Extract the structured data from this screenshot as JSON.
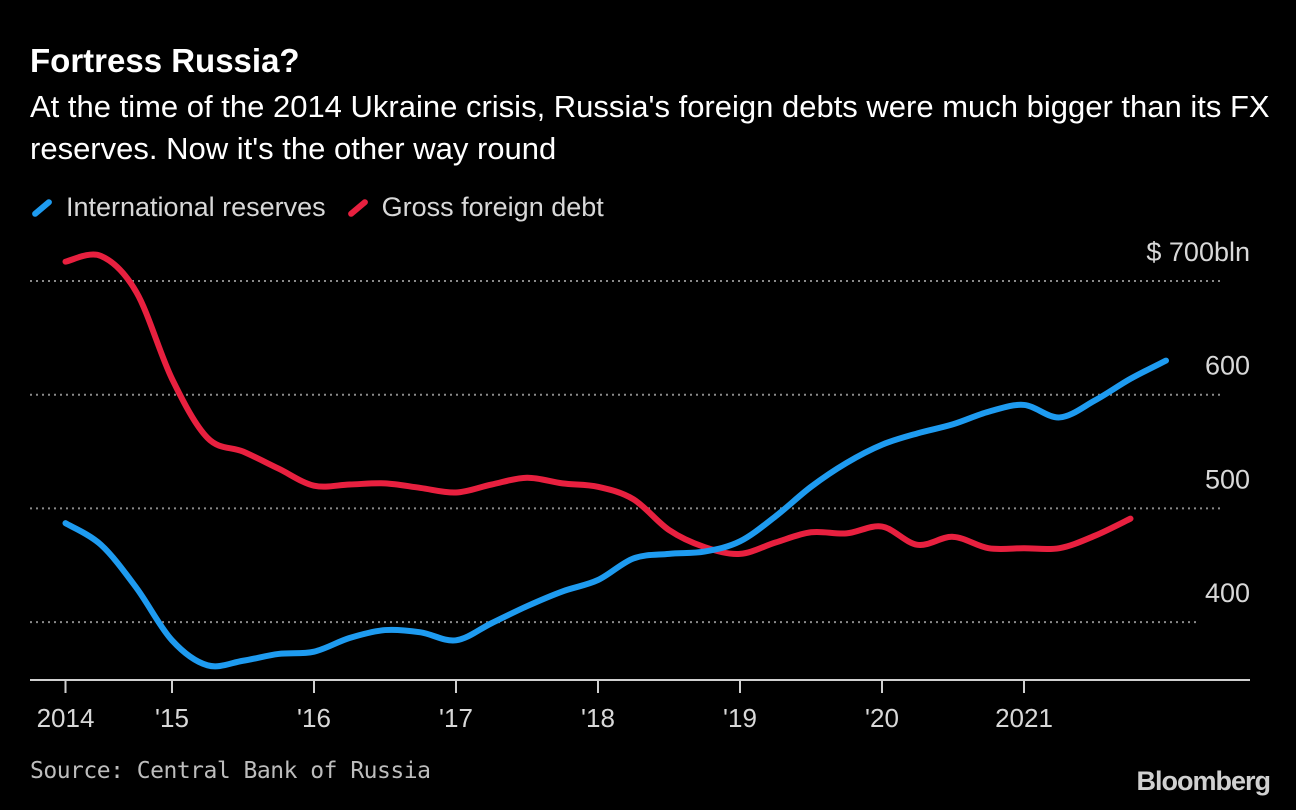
{
  "header": {
    "title": "Fortress Russia?",
    "subtitle": "At the time of the 2014 Ukraine crisis, Russia's foreign debts were much bigger than its FX reserves. Now it's the other way round"
  },
  "footer": {
    "source": "Source: Central Bank of Russia",
    "logo": "Bloomberg"
  },
  "chart_data": {
    "type": "line",
    "title": "Fortress Russia?",
    "xlabel": "",
    "ylabel": "",
    "ylim": [
      350,
      735
    ],
    "grid": true,
    "legend_placement": "top-left",
    "y_ticks": [
      {
        "value": 700,
        "label": "$ 700bln"
      },
      {
        "value": 600,
        "label": "600"
      },
      {
        "value": 500,
        "label": "500"
      },
      {
        "value": 400,
        "label": "400"
      }
    ],
    "x_ticks": [
      {
        "date": "2014-04-01",
        "label": "2014"
      },
      {
        "date": "2015-01-01",
        "label": "'15"
      },
      {
        "date": "2016-01-01",
        "label": "'16"
      },
      {
        "date": "2017-01-01",
        "label": "'17"
      },
      {
        "date": "2018-01-01",
        "label": "'18"
      },
      {
        "date": "2019-01-01",
        "label": "'19"
      },
      {
        "date": "2020-01-01",
        "label": "'20"
      },
      {
        "date": "2021-01-01",
        "label": "2021"
      }
    ],
    "series": [
      {
        "name": "International reserves",
        "color": "#1e9bf0",
        "x": [
          "2014-04-01",
          "2014-07-01",
          "2014-10-01",
          "2015-01-01",
          "2015-04-01",
          "2015-07-01",
          "2015-10-01",
          "2016-01-01",
          "2016-04-01",
          "2016-07-01",
          "2016-10-01",
          "2017-01-01",
          "2017-04-01",
          "2017-07-01",
          "2017-10-01",
          "2018-01-01",
          "2018-04-01",
          "2018-07-01",
          "2018-10-01",
          "2019-01-01",
          "2019-04-01",
          "2019-07-01",
          "2019-10-01",
          "2020-01-01",
          "2020-04-01",
          "2020-07-01",
          "2020-10-01",
          "2021-01-01",
          "2021-04-01",
          "2021-07-01",
          "2021-10-01",
          "2022-01-01"
        ],
        "values": [
          487,
          468,
          430,
          384,
          362,
          366,
          372,
          374,
          386,
          393,
          391,
          384,
          399,
          414,
          427,
          437,
          456,
          460,
          462,
          471,
          493,
          519,
          540,
          556,
          566,
          574,
          585,
          591,
          580,
          595,
          614,
          630
        ]
      },
      {
        "name": "Gross foreign debt",
        "color": "#e8203f",
        "x": [
          "2014-04-01",
          "2014-07-01",
          "2014-10-01",
          "2015-01-01",
          "2015-04-01",
          "2015-07-01",
          "2015-10-01",
          "2016-01-01",
          "2016-04-01",
          "2016-07-01",
          "2016-10-01",
          "2017-01-01",
          "2017-04-01",
          "2017-07-01",
          "2017-10-01",
          "2018-01-01",
          "2018-04-01",
          "2018-07-01",
          "2018-10-01",
          "2019-01-01",
          "2019-04-01",
          "2019-07-01",
          "2019-10-01",
          "2020-01-01",
          "2020-04-01",
          "2020-07-01",
          "2020-10-01",
          "2021-01-01",
          "2021-04-01",
          "2021-07-01",
          "2021-10-01"
        ],
        "values": [
          717,
          722,
          690,
          614,
          562,
          550,
          535,
          520,
          521,
          522,
          518,
          514,
          521,
          527,
          522,
          519,
          508,
          481,
          466,
          460,
          470,
          479,
          478,
          484,
          468,
          475,
          465,
          465,
          465,
          476,
          491
        ]
      }
    ]
  }
}
